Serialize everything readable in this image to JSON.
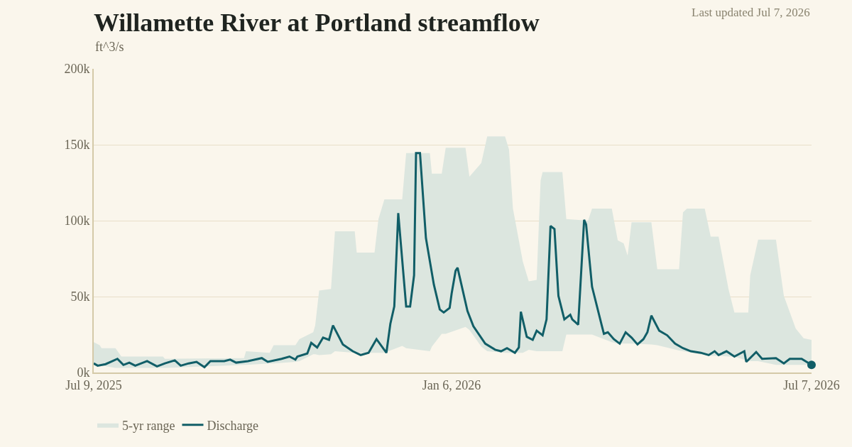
{
  "chart_data": {
    "type": "line",
    "title": "Willamette River at Portland streamflow",
    "ylabel": "ft^3/s",
    "annotations": [
      "Last updated Jul 7, 2026"
    ],
    "xlim": [
      "2025-07-09",
      "2026-07-07"
    ],
    "xticks": [
      {
        "value": "2025-07-09",
        "label": "Jul 9, 2025"
      },
      {
        "value": "2026-01-06",
        "label": "Jan 6, 2026"
      },
      {
        "value": "2026-07-07",
        "label": "Jul 7, 2026"
      }
    ],
    "ylim": [
      0,
      200000
    ],
    "yticks": [
      {
        "value": 0,
        "label": "0k"
      },
      {
        "value": 50000,
        "label": "50k"
      },
      {
        "value": 100000,
        "label": "100k"
      },
      {
        "value": 150000,
        "label": "150k"
      },
      {
        "value": 200000,
        "label": "200k"
      }
    ],
    "grid": "y",
    "legend": "bottom left",
    "marker": "none",
    "line_style": "solid",
    "series": [
      {
        "name": "5-yr range",
        "type": "area",
        "color": "#dce6df",
        "x": [
          "2025-07-09",
          "2025-07-12",
          "2025-07-13",
          "2025-07-20",
          "2025-07-23",
          "2025-08-13",
          "2025-08-14",
          "2025-09-23",
          "2025-09-24",
          "2025-10-06",
          "2025-10-08",
          "2025-10-19",
          "2025-10-21",
          "2025-10-28",
          "2025-10-29",
          "2025-10-31",
          "2025-11-06",
          "2025-11-08",
          "2025-11-18",
          "2025-11-19",
          "2025-11-28",
          "2025-11-30",
          "2025-12-03",
          "2025-12-12",
          "2025-12-14",
          "2025-12-26",
          "2025-12-27",
          "2026-01-01",
          "2026-01-03",
          "2026-01-13",
          "2026-01-15",
          "2026-01-21",
          "2026-01-24",
          "2026-02-02",
          "2026-02-04",
          "2026-02-06",
          "2026-02-11",
          "2026-02-14",
          "2026-02-18",
          "2026-02-20",
          "2026-02-21",
          "2026-03-03",
          "2026-03-05",
          "2026-03-16",
          "2026-03-18",
          "2026-03-28",
          "2026-03-31",
          "2026-04-03",
          "2026-04-05",
          "2026-04-07",
          "2026-04-17",
          "2026-04-20",
          "2026-05-01",
          "2026-05-03",
          "2026-05-05",
          "2026-05-14",
          "2026-05-17",
          "2026-05-21",
          "2026-05-26",
          "2026-05-29",
          "2026-06-05",
          "2026-06-06",
          "2026-06-10",
          "2026-06-19",
          "2026-06-23",
          "2026-06-29",
          "2026-07-03",
          "2026-07-07"
        ],
        "values": [
          null,
          null,
          null,
          null,
          null,
          null,
          null,
          null,
          null,
          null,
          null,
          null,
          null,
          null,
          null,
          null,
          null,
          null,
          null,
          null,
          null,
          null,
          null,
          null,
          null,
          null,
          null,
          null,
          null,
          null,
          null,
          null,
          null,
          null,
          null,
          null,
          null,
          null,
          null,
          null,
          null,
          null,
          null,
          null,
          null,
          null,
          null,
          null,
          null,
          null,
          null,
          null,
          null,
          null,
          null,
          null,
          null,
          null,
          null,
          null,
          null,
          null,
          null,
          null,
          null,
          null,
          null,
          null
        ],
        "upper": [
          20000,
          18000,
          16000,
          16000,
          10500,
          10500,
          9000,
          9500,
          14000,
          13000,
          18000,
          18000,
          22000,
          26500,
          31000,
          54000,
          55000,
          93000,
          93000,
          79000,
          79000,
          101000,
          114000,
          114000,
          144500,
          144500,
          131000,
          131000,
          148000,
          148000,
          129000,
          138000,
          155500,
          155500,
          147000,
          108000,
          73000,
          60000,
          61000,
          126500,
          132000,
          132000,
          101000,
          100000,
          108000,
          108000,
          87000,
          85000,
          77000,
          99000,
          99000,
          68000,
          68000,
          105500,
          108000,
          108000,
          89500,
          89500,
          55000,
          39500,
          39500,
          64000,
          87500,
          87500,
          50500,
          29000,
          22500,
          21500
        ],
        "lower": [
          5000,
          5000,
          4500,
          3000,
          3000,
          3000,
          3000,
          5000,
          5000,
          6000,
          6000,
          7000,
          7500,
          12000,
          12000,
          11500,
          12000,
          14000,
          13000,
          13000,
          13000,
          13000,
          13000,
          17500,
          16000,
          14000,
          17000,
          25500,
          25500,
          30000,
          28000,
          17000,
          14000,
          13000,
          13000,
          13000,
          13000,
          15000,
          14000,
          14000,
          14000,
          14000,
          25000,
          25000,
          25000,
          20000,
          19000,
          19000,
          19000,
          19000,
          18500,
          18000,
          14500,
          14000,
          13500,
          11500,
          11000,
          11000,
          10500,
          10500,
          7500,
          7500,
          7500,
          5000,
          5000,
          5000,
          5000,
          5000
        ]
      },
      {
        "name": "Discharge",
        "type": "line",
        "color": "#115e67",
        "x": [
          "2025-07-09",
          "2025-07-11",
          "2025-07-15",
          "2025-07-21",
          "2025-07-24",
          "2025-07-27",
          "2025-07-30",
          "2025-08-05",
          "2025-08-10",
          "2025-08-14",
          "2025-08-19",
          "2025-08-22",
          "2025-08-26",
          "2025-08-30",
          "2025-09-03",
          "2025-09-06",
          "2025-09-13",
          "2025-09-16",
          "2025-09-19",
          "2025-09-25",
          "2025-10-02",
          "2025-10-05",
          "2025-10-12",
          "2025-10-16",
          "2025-10-19",
          "2025-10-20",
          "2025-10-25",
          "2025-10-27",
          "2025-10-30",
          "2025-11-02",
          "2025-11-05",
          "2025-11-07",
          "2025-11-12",
          "2025-11-17",
          "2025-11-21",
          "2025-11-25",
          "2025-11-29",
          "2025-12-04",
          "2025-12-06",
          "2025-12-08",
          "2025-12-10",
          "2025-12-14",
          "2025-12-16",
          "2025-12-18",
          "2025-12-19",
          "2025-12-21",
          "2025-12-24",
          "2025-12-28",
          "2025-12-31",
          "2026-01-02",
          "2026-01-05",
          "2026-01-06",
          "2026-01-08",
          "2026-01-09",
          "2026-01-14",
          "2026-01-17",
          "2026-01-23",
          "2026-01-28",
          "2026-01-31",
          "2026-02-03",
          "2026-02-07",
          "2026-02-09",
          "2026-02-10",
          "2026-02-13",
          "2026-02-16",
          "2026-02-18",
          "2026-02-21",
          "2026-02-23",
          "2026-02-25",
          "2026-02-27",
          "2026-03-01",
          "2026-03-04",
          "2026-03-07",
          "2026-03-08",
          "2026-03-11",
          "2026-03-14",
          "2026-03-15",
          "2026-03-18",
          "2026-03-23",
          "2026-03-24",
          "2026-03-26",
          "2026-03-29",
          "2026-04-01",
          "2026-04-04",
          "2026-04-07",
          "2026-04-10",
          "2026-04-13",
          "2026-04-15",
          "2026-04-17",
          "2026-04-21",
          "2026-04-25",
          "2026-04-29",
          "2026-05-03",
          "2026-05-07",
          "2026-05-12",
          "2026-05-16",
          "2026-05-19",
          "2026-05-21",
          "2026-05-25",
          "2026-05-29",
          "2026-06-03",
          "2026-06-04",
          "2026-06-09",
          "2026-06-12",
          "2026-06-19",
          "2026-06-23",
          "2026-06-26",
          "2026-07-02",
          "2026-07-07"
        ],
        "values": [
          6000,
          4500,
          5500,
          9000,
          5000,
          6500,
          4500,
          7500,
          4000,
          6000,
          8000,
          4500,
          6000,
          7000,
          3500,
          7500,
          7500,
          8500,
          6500,
          7500,
          9500,
          7000,
          9000,
          10500,
          8500,
          10500,
          12500,
          19500,
          16500,
          23000,
          21500,
          31000,
          18500,
          14000,
          11500,
          13000,
          22000,
          13000,
          32000,
          43500,
          105000,
          43500,
          43500,
          64000,
          144500,
          144500,
          88500,
          58000,
          41500,
          39500,
          42500,
          52000,
          67000,
          69000,
          40500,
          30500,
          19000,
          15000,
          14000,
          16000,
          13000,
          16500,
          40000,
          23500,
          21500,
          27500,
          24500,
          35000,
          96500,
          94500,
          50500,
          35000,
          38000,
          35000,
          31500,
          100500,
          97500,
          56500,
          30500,
          25500,
          26500,
          22000,
          19000,
          26500,
          23000,
          18500,
          22000,
          26500,
          37500,
          27500,
          24500,
          19000,
          16000,
          14000,
          13000,
          11500,
          14000,
          11500,
          14000,
          10500,
          14000,
          7000,
          13500,
          9000,
          9500,
          6000,
          9000,
          9000,
          5000
        ]
      },
      {
        "color": "#115e67",
        "marker": "circle",
        "x": [
          "2026-07-07"
        ],
        "values": [
          5000
        ]
      }
    ]
  }
}
